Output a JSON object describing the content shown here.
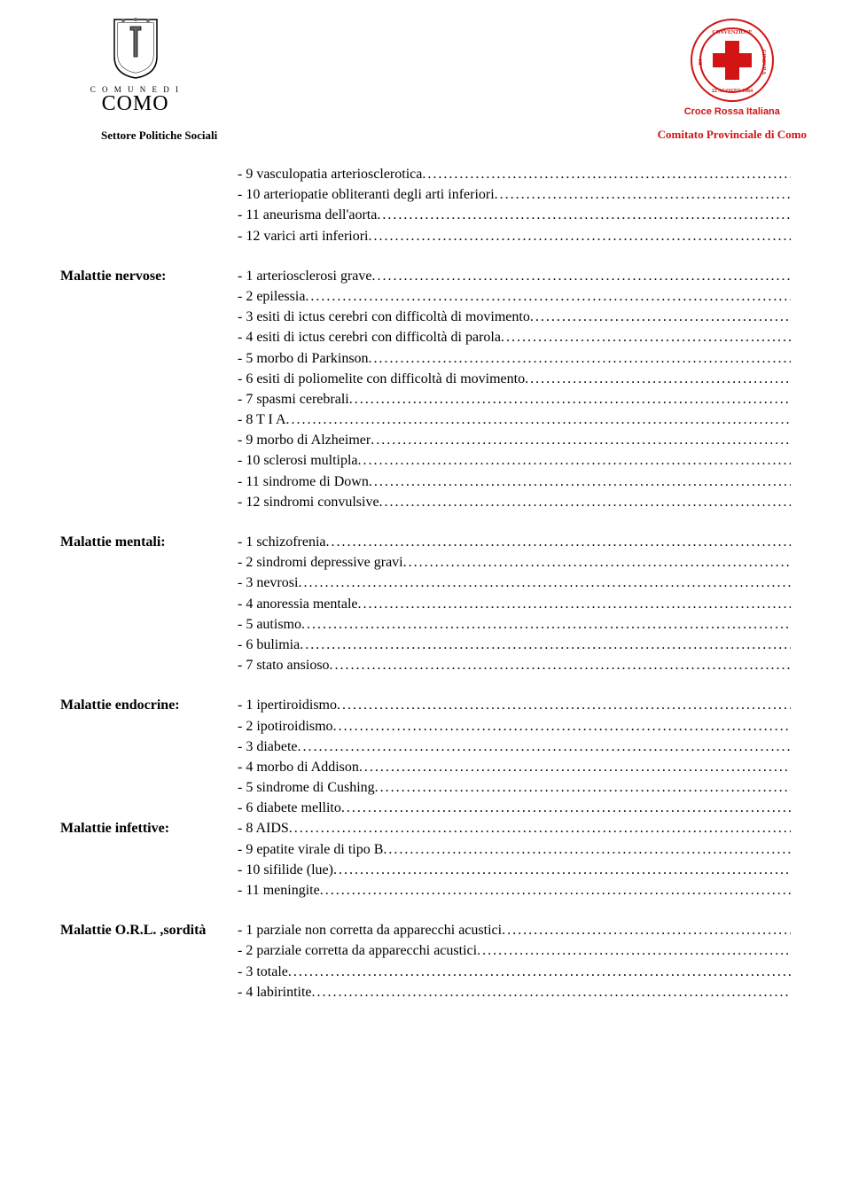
{
  "header": {
    "comune_small": "C O M U N E   D I",
    "como": "COMO",
    "settore": "Settore Politiche Sociali",
    "cri": "Croce Rossa Italiana",
    "comitato": "Comitato Provinciale di Como"
  },
  "intro": [
    "- 9 vasculopatia arteriosclerotica",
    "- 10 arteriopatie obliteranti degli arti inferiori",
    "- 11 aneurisma dell'aorta",
    "- 12 varici arti inferiori"
  ],
  "sections": {
    "nervose": {
      "label": "Malattie nervose:",
      "items": [
        "- 1 arteriosclerosi grave",
        "- 2 epilessia",
        "-  3  esiti  di  ictus  cerebri  con  difficoltà  di  movimento",
        "- 4 esiti di ictus cerebri con difficoltà di parola",
        "- 5 morbo di Parkinson",
        "- 6 esiti di poliomelite con difficoltà di movimento",
        "- 7 spasmi cerebrali",
        "- 8 T I A",
        "- 9 morbo di Alzheimer",
        "- 10 sclerosi multipla",
        "- 11 sindrome di Down",
        "- 12 sindromi convulsive"
      ]
    },
    "mentali": {
      "label": "Malattie mentali:",
      "items": [
        "- 1 schizofrenia",
        "- 2 sindromi depressive gravi",
        "- 3 nevrosi",
        "- 4 anoressia mentale",
        "- 5 autismo",
        "- 6 bulimia",
        "- 7 stato ansioso"
      ]
    },
    "endocrine": {
      "label": "Malattie endocrine:",
      "items": [
        "- 1 ipertiroidismo",
        "- 2 ipotiroidismo",
        "- 3 diabete",
        "- 4 morbo di Addison",
        "- 5 sindrome di Cushing",
        "- 6 diabete mellito"
      ]
    },
    "infettive": {
      "label": "Malattie infettive:",
      "items": [
        "- 8 AIDS",
        "- 9 epatite virale di tipo B",
        "- 10 sifilide (lue)",
        "- 11 meningite"
      ]
    },
    "orl": {
      "label": "Malattie O.R.L. ,sordità",
      "items": [
        "- 1 parziale non corretta da apparecchi acustici",
        "- 2 parziale corretta da apparecchi acustici",
        "- 3 totale",
        "- 4 labirintite"
      ]
    }
  },
  "colors": {
    "text": "#000000",
    "red": "#d21414",
    "bg": "#ffffff"
  }
}
